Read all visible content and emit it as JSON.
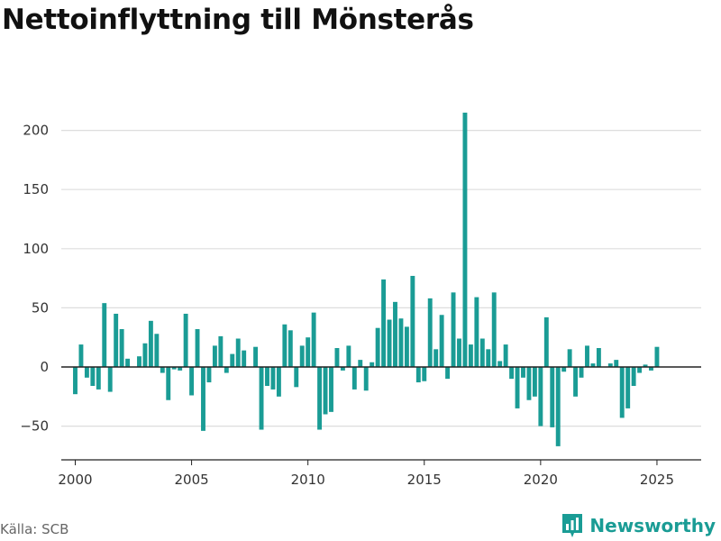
{
  "title": "Nettoinflyttning till Mönsterås",
  "source": "Källa: SCB",
  "brand": {
    "name": "Newsworthy",
    "icon": "bar-chart-logo-icon"
  },
  "colors": {
    "bar": "#1a9c95",
    "grid": "#dddddd",
    "axis": "#222222",
    "brand": "#1a9c95",
    "text": "#333333"
  },
  "chart_data": {
    "type": "bar",
    "title": "Nettoinflyttning till Mönsterås",
    "xlabel": "",
    "ylabel": "",
    "ylim": [
      -78,
      225
    ],
    "xlim": [
      1999.4,
      2026.9
    ],
    "x_ticks": [
      "2000",
      "2005",
      "2010",
      "2015",
      "2020",
      "2025"
    ],
    "x_tick_values": [
      2000,
      2005,
      2010,
      2015,
      2020,
      2025
    ],
    "y_ticks": [
      "−50",
      "0",
      "50",
      "100",
      "150",
      "200"
    ],
    "y_tick_values": [
      -50,
      0,
      50,
      100,
      150,
      200
    ],
    "grid": "horizontal",
    "start_year": 2000,
    "periods_per_year": 4,
    "values": [
      -23,
      19,
      -9,
      -16,
      -19,
      54,
      -21,
      45,
      32,
      7,
      0,
      9,
      20,
      39,
      28,
      -5,
      -28,
      -2,
      -3,
      45,
      -24,
      32,
      -54,
      -13,
      18,
      26,
      -5,
      11,
      24,
      14,
      0,
      17,
      -53,
      -16,
      -19,
      -25,
      36,
      31,
      -17,
      18,
      25,
      46,
      -53,
      -40,
      -38,
      16,
      -3,
      18,
      -19,
      6,
      -20,
      4,
      33,
      74,
      40,
      55,
      41,
      34,
      77,
      -13,
      -12,
      58,
      15,
      44,
      -10,
      63,
      24,
      215,
      19,
      59,
      24,
      15,
      63,
      5,
      19,
      -10,
      -35,
      -9,
      -28,
      -25,
      -50,
      42,
      -51,
      -67,
      -4,
      15,
      -25,
      -9,
      18,
      3,
      16,
      0,
      3,
      6,
      -43,
      -35,
      -16,
      -5,
      2,
      -3,
      17
    ]
  }
}
